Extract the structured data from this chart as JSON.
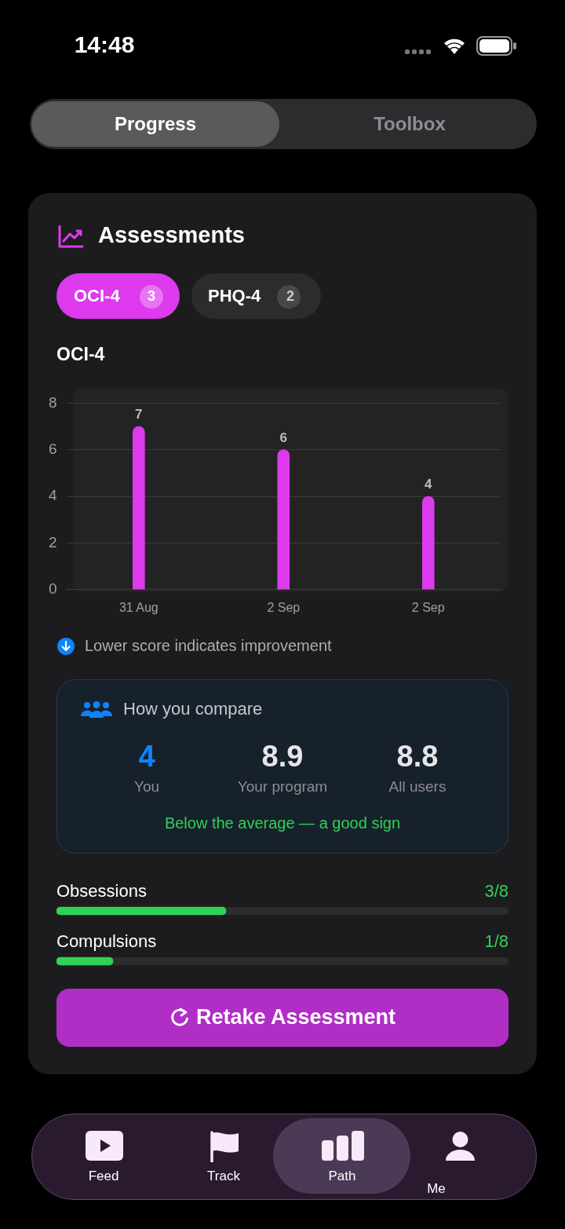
{
  "chart_data": [
    {
      "type": "other",
      "title": "Assessments",
      "annotations": [
        "14:48",
        "Progress",
        "Toolbox",
        "OCI-4",
        "3",
        "PHQ-4",
        "2",
        "Retake Assessment",
        "Feed",
        "Track",
        "Path",
        "Me"
      ]
    },
    {
      "type": "bar",
      "title": "OCI-4",
      "categories": [
        "31 Aug",
        "2 Sep",
        "2 Sep"
      ],
      "values": [
        7,
        6,
        4
      ],
      "color": "#dd3aee",
      "ylim": [
        0,
        8
      ],
      "yticks": [
        0,
        2,
        4,
        6,
        8
      ],
      "grid": "y",
      "data_labels": true,
      "annotations": [
        "Lower score indicates improvement"
      ]
    },
    {
      "type": "other",
      "title": "How you compare",
      "annotations": [
        "4",
        "You",
        "8.9",
        "Your program",
        "8.8",
        "All users",
        "Below the average — a good sign"
      ]
    },
    {
      "type": "bar",
      "orientation": "horizontal",
      "categories": [
        "Obsessions",
        "Compulsions"
      ],
      "values": [
        0.375,
        0.125
      ],
      "color": "#30d158",
      "xlim": [
        0,
        1
      ],
      "value_labels": [
        "3/8",
        "1/8"
      ]
    }
  ]
}
